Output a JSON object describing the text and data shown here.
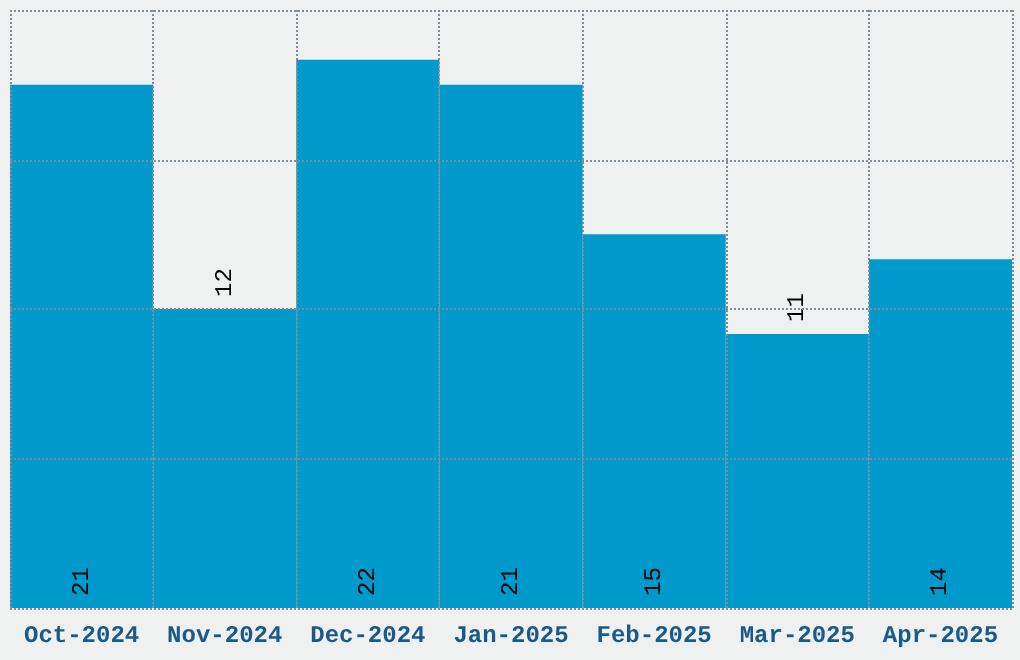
{
  "chart_data": {
    "type": "bar",
    "categories": [
      "Oct-2024",
      "Nov-2024",
      "Dec-2024",
      "Jan-2025",
      "Feb-2025",
      "Mar-2025",
      "Apr-2025"
    ],
    "values": [
      21,
      12,
      22,
      21,
      15,
      11,
      14
    ],
    "color": "#0099cc",
    "ylim": [
      0,
      24
    ],
    "yticks": [
      {
        "value": 0,
        "label": null
      },
      {
        "value": 6,
        "label": null
      },
      {
        "value": 12,
        "label": null
      },
      {
        "value": 18,
        "label": null
      },
      {
        "value": 24,
        "label": null
      }
    ],
    "tick_labels": "x",
    "grid": true,
    "data_labels": true
  }
}
